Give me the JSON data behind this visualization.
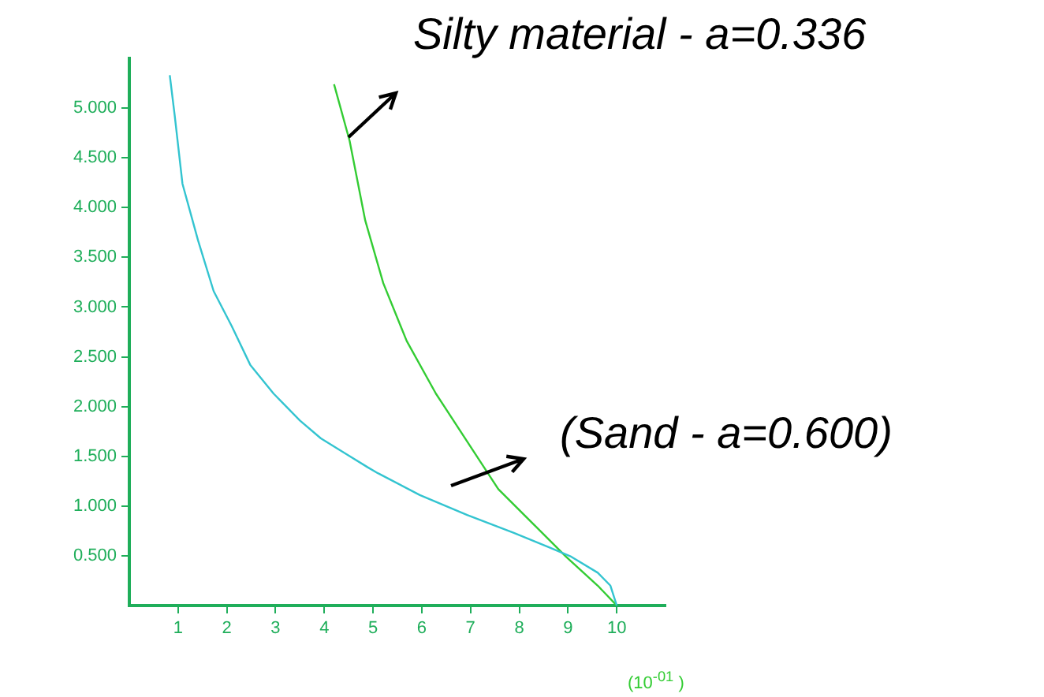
{
  "chart_data": {
    "type": "line",
    "xlabel": "(10$^{-01}$ )",
    "annotations": [
      {
        "text": "Silty material  -  a=0.336",
        "x": 4.5,
        "y": 4.7
      },
      {
        "text": "(Sand  -  a=0.600)",
        "x": 7.3,
        "y": 1.37
      }
    ],
    "xlim": [
      0,
      11
    ],
    "ylim": [
      0,
      5.5
    ],
    "xticks": [
      1,
      2,
      3,
      4,
      5,
      6,
      7,
      8,
      9,
      10
    ],
    "yticks": [
      {
        "value": 0.5,
        "label": "0.500"
      },
      {
        "value": 1,
        "label": "1.000"
      },
      {
        "value": 1.5,
        "label": "1.500"
      },
      {
        "value": 2,
        "label": "2.000"
      },
      {
        "value": 2.5,
        "label": "2.500"
      },
      {
        "value": 3,
        "label": "3.000"
      },
      {
        "value": 3.5,
        "label": "3.500"
      },
      {
        "value": 4,
        "label": "4.000"
      },
      {
        "value": 4.5,
        "label": "4.500"
      },
      {
        "value": 5,
        "label": "5.000"
      }
    ],
    "grid": false,
    "legend": false,
    "marker": "none",
    "line_style": "solid",
    "series": [
      {
        "color": "#33c4d0",
        "x": [
          0.83,
          0.93,
          1.09,
          1.41,
          1.73,
          2.1,
          2.48,
          2.96,
          3.5,
          3.93,
          4.46,
          4.89,
          5.1,
          5.96,
          6.93,
          7.89,
          8.64,
          9.07,
          9.61,
          9.87,
          10
        ],
        "values": [
          5.33,
          4.93,
          4.24,
          3.67,
          3.16,
          2.81,
          2.42,
          2.13,
          1.86,
          1.68,
          1.52,
          1.39,
          1.33,
          1.11,
          0.91,
          0.73,
          0.58,
          0.49,
          0.33,
          0.2,
          0
        ]
      },
      {
        "color": "#33cc33",
        "x": [
          4.2,
          4.52,
          4.84,
          5.21,
          5.69,
          6.29,
          6.93,
          7.57,
          8.43,
          8.96,
          9.61,
          10
        ],
        "values": [
          5.24,
          4.67,
          3.87,
          3.24,
          2.66,
          2.13,
          1.65,
          1.17,
          0.75,
          0.49,
          0.2,
          0
        ]
      }
    ]
  }
}
